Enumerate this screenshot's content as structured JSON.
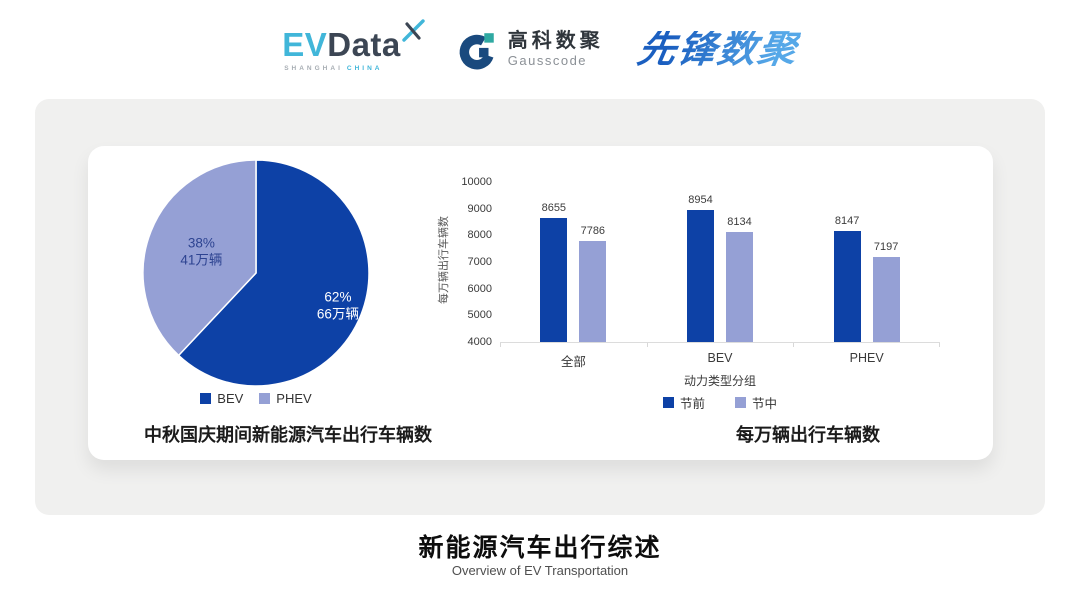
{
  "header": {
    "evdata": {
      "ev": "EV",
      "data": "Data",
      "sub_left": "SHANGHAI",
      "sub_right": "CHINA"
    },
    "gausscode": {
      "name_cn": "高科数聚",
      "name_en": "Gausscode"
    },
    "pioneer": {
      "name": "先锋数聚"
    }
  },
  "colors": {
    "series_dark_blue": "#0D41A6",
    "series_light_blue": "#95A0D5",
    "pie_label_dark": "#2D4391",
    "pie_label_light": "#FFFFFF",
    "band_background": "#F0F0EF",
    "evdata_cyan": "#41B6D9",
    "evdata_dark": "#3C4654",
    "gauss_navy": "#1A4A7E",
    "gauss_teal": "#2FA9A2",
    "pioneer_blue": "#2E7CD6"
  },
  "chart_data": [
    {
      "type": "pie",
      "title": "中秋国庆期间新能源汽车出行车辆数",
      "start_angle": "top",
      "direction": "clockwise",
      "legend_position": "bottom",
      "legend": [
        "BEV",
        "PHEV"
      ],
      "slices": [
        {
          "label": "BEV",
          "percent": 62,
          "value_label": "66万辆",
          "color": "#0D41A6",
          "text_color": "#FFFFFF",
          "label_radius": 0.78
        },
        {
          "label": "PHEV",
          "percent": 38,
          "value_label": "41万辆",
          "color": "#95A0D5",
          "text_color": "#2D4391",
          "label_radius": 0.52
        }
      ]
    },
    {
      "type": "bar",
      "title": "每万辆出行车辆数",
      "categories": [
        "全部",
        "BEV",
        "PHEV"
      ],
      "series": [
        {
          "name": "节前",
          "values": [
            8655,
            8954,
            8147
          ],
          "color": "#0D41A6"
        },
        {
          "name": "节中",
          "values": [
            7786,
            8134,
            7197
          ],
          "color": "#95A0D5"
        }
      ],
      "xlabel": "动力类型分组",
      "ylabel": "每万辆出行车辆数",
      "ylim": [
        4000,
        10000
      ],
      "ytick_step": 1000,
      "grid": false,
      "legend_position": "bottom"
    }
  ],
  "footer": {
    "title": "新能源汽车出行综述",
    "subtitle": "Overview of EV Transportation"
  }
}
